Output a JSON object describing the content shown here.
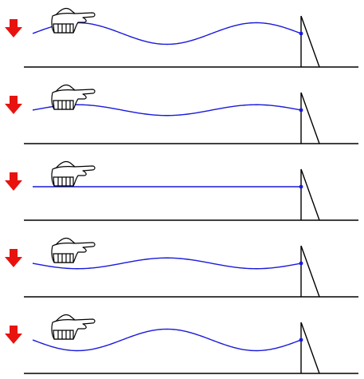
{
  "diagram": {
    "description_type": "standing-wave-sequence",
    "panel_count": 5,
    "colors": {
      "wave": "#1a1adc",
      "arrow": "#e8130f",
      "ground": "#000000",
      "support": "#000000",
      "hand": "#000000"
    },
    "icons": {
      "arrow": "red-down-arrow-icon",
      "hand": "hand-holding-rope-icon",
      "support": "triangular-wall-support-icon"
    },
    "panels": [
      {
        "amplitude": 1.0
      },
      {
        "amplitude": 0.5
      },
      {
        "amplitude": 0.0
      },
      {
        "amplitude": -0.5
      },
      {
        "amplitude": -1.0
      }
    ]
  }
}
